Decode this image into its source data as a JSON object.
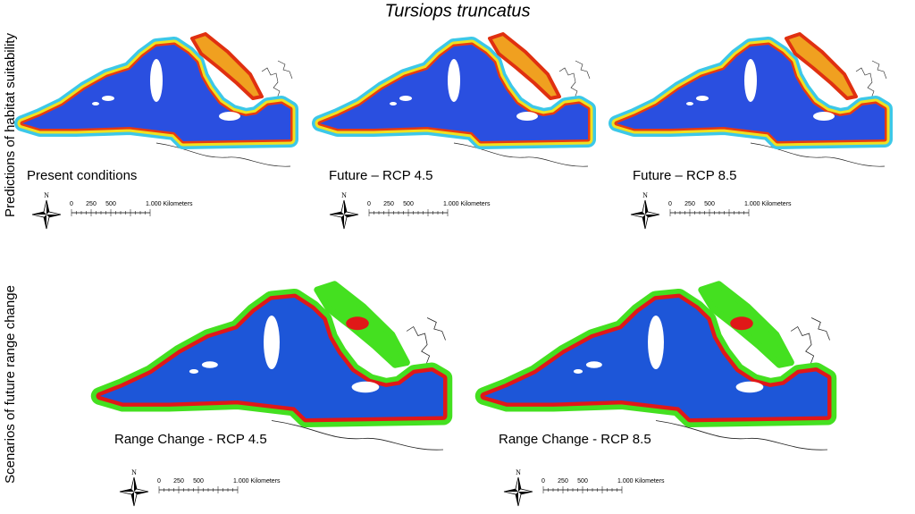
{
  "title": "Tursiops truncatus",
  "rows": [
    {
      "label": "Predictions of habitat suitability",
      "panels": [
        {
          "label": "Present conditions"
        },
        {
          "label": "Future – RCP 4.5"
        },
        {
          "label": "Future – RCP 8.5"
        }
      ]
    },
    {
      "label": "Scenarios of future range change",
      "panels": [
        {
          "label": "Range Change - RCP 4.5"
        },
        {
          "label": "Range Change - RCP 8.5"
        }
      ]
    }
  ],
  "scale_bar": {
    "ticks": [
      "0",
      "250",
      "500"
    ],
    "end_label": "1.000 Kilometers"
  },
  "north": "N"
}
